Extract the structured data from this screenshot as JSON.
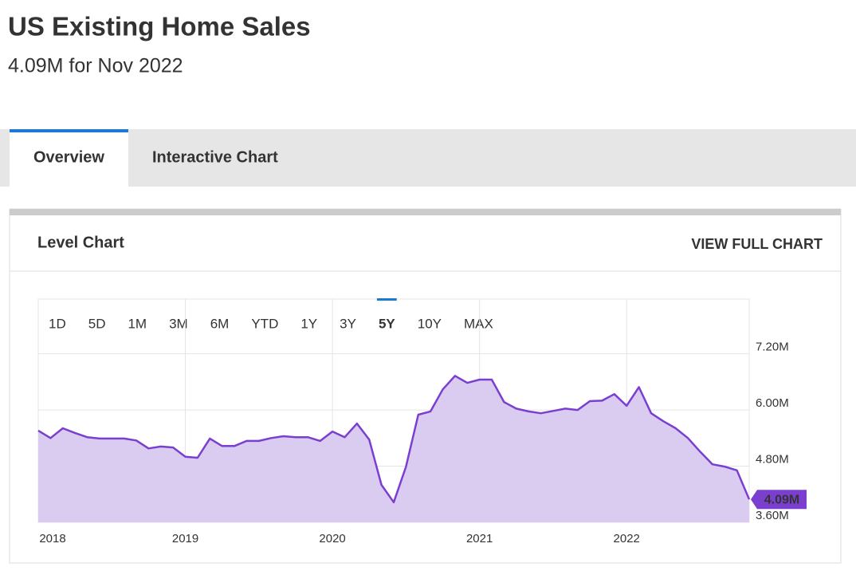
{
  "header": {
    "title": "US Existing Home Sales",
    "subtitle": "4.09M for Nov 2022"
  },
  "tabs": [
    "Overview",
    "Interactive Chart"
  ],
  "active_tab": "Overview",
  "card": {
    "title": "Level Chart",
    "link": "VIEW FULL CHART"
  },
  "ranges": [
    "1D",
    "5D",
    "1M",
    "3M",
    "6M",
    "YTD",
    "1Y",
    "3Y",
    "5Y",
    "10Y",
    "MAX"
  ],
  "active_range": "5Y",
  "chart_data": {
    "type": "area",
    "color": "#7b3fd0",
    "fill": "#d9ccf0",
    "values": [
      5.56,
      5.4,
      5.61,
      5.51,
      5.42,
      5.39,
      5.39,
      5.39,
      5.35,
      5.18,
      5.22,
      5.2,
      5.0,
      4.98,
      5.39,
      5.23,
      5.23,
      5.34,
      5.34,
      5.4,
      5.44,
      5.42,
      5.42,
      5.34,
      5.54,
      5.42,
      5.71,
      5.37,
      4.4,
      4.03,
      4.79,
      5.9,
      5.97,
      6.44,
      6.73,
      6.58,
      6.65,
      6.65,
      6.17,
      6.03,
      5.97,
      5.93,
      5.98,
      6.03,
      6.0,
      6.19,
      6.2,
      6.34,
      6.09,
      6.49,
      5.93,
      5.76,
      5.61,
      5.4,
      5.11,
      4.84,
      4.79,
      4.71,
      4.09
    ],
    "last_value_label": "4.09M",
    "xlim": [
      0,
      58
    ],
    "xticks": [
      {
        "value": 0,
        "label": "2018"
      },
      {
        "value": 12,
        "label": "2019"
      },
      {
        "value": 24,
        "label": "2020"
      },
      {
        "value": 36,
        "label": "2021"
      },
      {
        "value": 48,
        "label": "2022"
      }
    ],
    "ylim": [
      3.6,
      8.37
    ],
    "yticks": [
      {
        "value": 3.6,
        "label": "3.60M"
      },
      {
        "value": 4.8,
        "label": "4.80M"
      },
      {
        "value": 6.0,
        "label": "6.00M"
      },
      {
        "value": 7.2,
        "label": "7.20M"
      }
    ],
    "grid": true
  }
}
